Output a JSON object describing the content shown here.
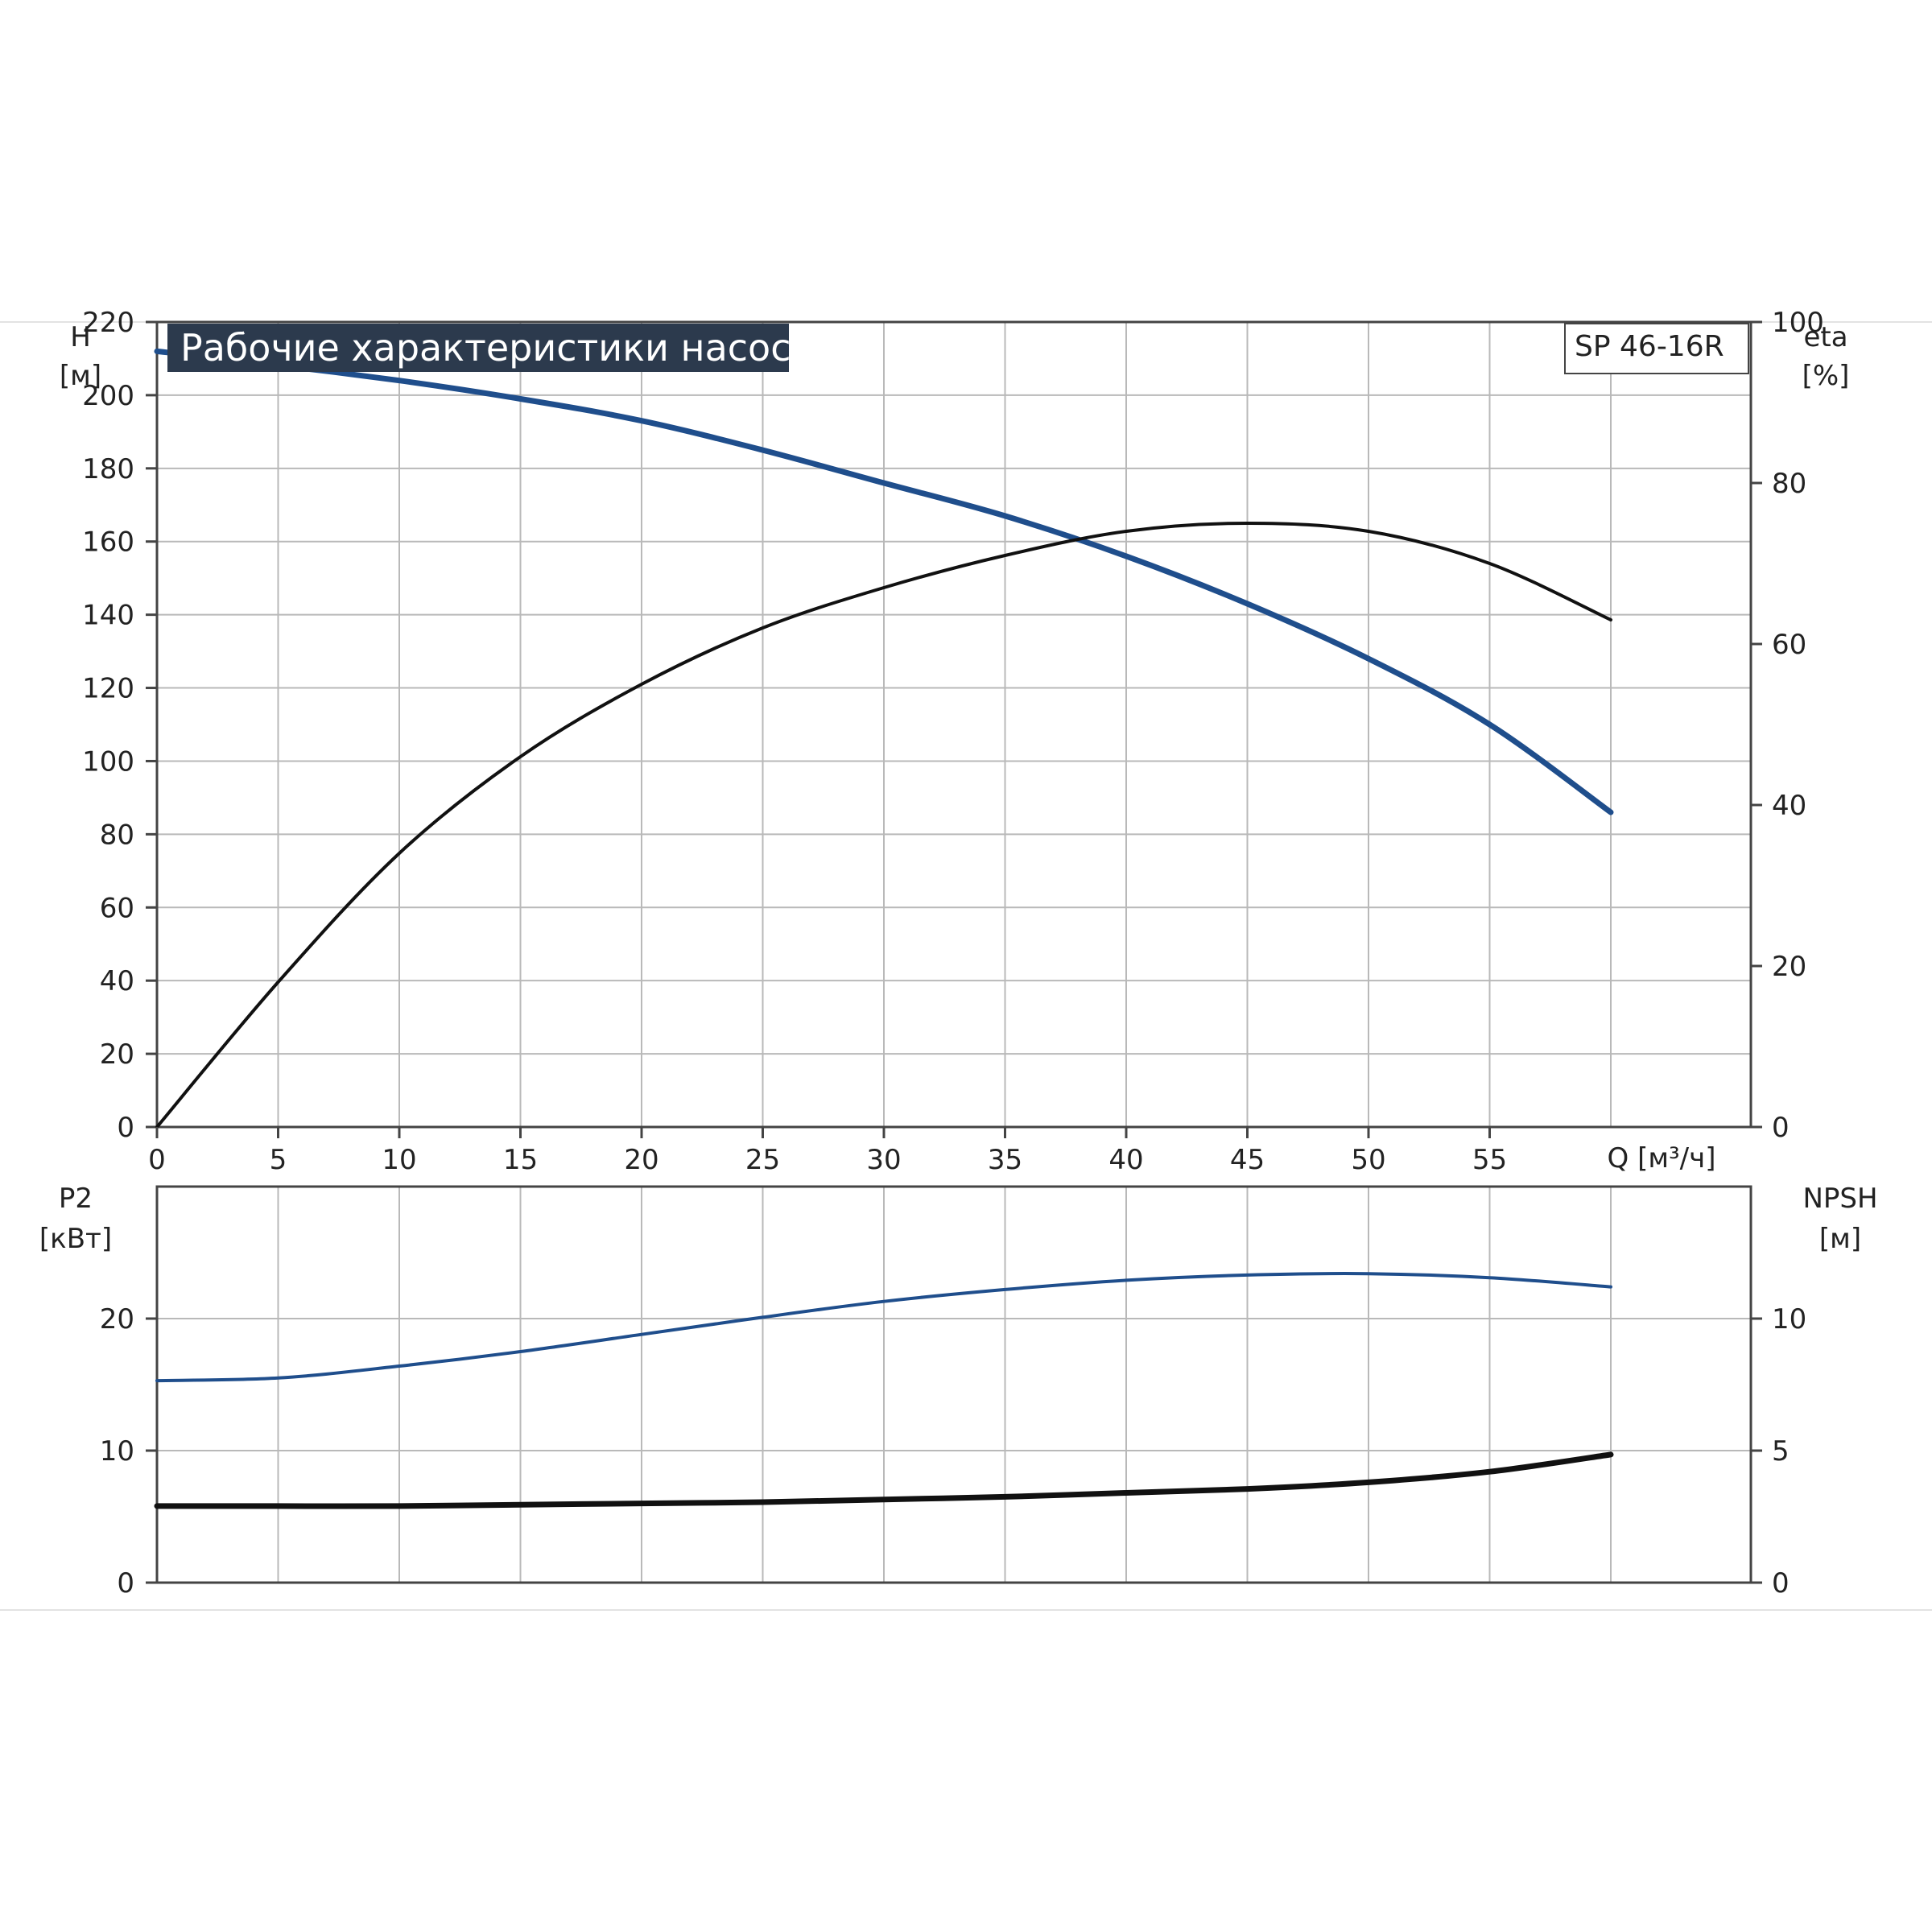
{
  "chart_data": {
    "colors": {
      "head": "#1f4e8c",
      "p2": "#1f4e8c",
      "eta": "#111111",
      "npsh": "#111111",
      "title_bg": "#2c3a4d"
    },
    "title": "Рабочие характеристики насоса",
    "model": "SP 46-16R",
    "x_axis": {
      "label": "Q [м³/ч]",
      "range": [
        0,
        65
      ],
      "ticks": [
        "0",
        "5",
        "10",
        "15",
        "20",
        "25",
        "30",
        "35",
        "40",
        "45",
        "50",
        "55"
      ]
    },
    "top_plot": {
      "type": "line",
      "left_axis": {
        "label_1": "H",
        "label_2": "[м]",
        "range": [
          0,
          220
        ],
        "ticks": [
          "0",
          "20",
          "40",
          "60",
          "80",
          "100",
          "120",
          "140",
          "160",
          "180",
          "200",
          "220"
        ]
      },
      "right_axis": {
        "label_1": "eta",
        "label_2": "[%]",
        "range": [
          0,
          100
        ],
        "ticks": [
          "0",
          "20",
          "40",
          "60",
          "80",
          "100"
        ]
      },
      "series": [
        {
          "axis": "left",
          "x": [
            0,
            4,
            10,
            15,
            20,
            25,
            30,
            35,
            40,
            45,
            50,
            55,
            60
          ],
          "y": [
            212,
            209,
            204,
            199,
            193,
            185,
            176,
            167,
            156,
            143,
            128,
            110,
            86
          ]
        },
        {
          "axis": "right",
          "x": [
            0,
            5,
            10,
            15,
            20,
            25,
            30,
            35,
            40,
            45,
            50,
            55,
            60
          ],
          "y": [
            0,
            18,
            34,
            46,
            55,
            62,
            67,
            71,
            74,
            75,
            74,
            70,
            63
          ]
        }
      ]
    },
    "bottom_plot": {
      "type": "line",
      "left_axis": {
        "label_1": "P2",
        "label_2": "[кВт]",
        "range": [
          0,
          30
        ],
        "ticks": [
          "0",
          "10",
          "20"
        ]
      },
      "right_axis": {
        "label_1": "NPSH",
        "label_2": "[м]",
        "range": [
          0,
          15
        ],
        "ticks": [
          "0",
          "5",
          "10"
        ]
      },
      "series": [
        {
          "axis": "left",
          "x": [
            0,
            5,
            10,
            15,
            20,
            25,
            30,
            35,
            40,
            45,
            50,
            55,
            60
          ],
          "y": [
            15.3,
            15.5,
            16.4,
            17.5,
            18.8,
            20.1,
            21.3,
            22.2,
            22.9,
            23.3,
            23.4,
            23.1,
            22.4
          ]
        },
        {
          "axis": "right",
          "x": [
            0,
            5,
            10,
            15,
            20,
            25,
            30,
            35,
            40,
            45,
            50,
            55,
            60
          ],
          "y": [
            2.9,
            2.9,
            2.9,
            2.95,
            3.0,
            3.05,
            3.15,
            3.25,
            3.4,
            3.55,
            3.8,
            4.2,
            4.85
          ]
        }
      ]
    }
  }
}
